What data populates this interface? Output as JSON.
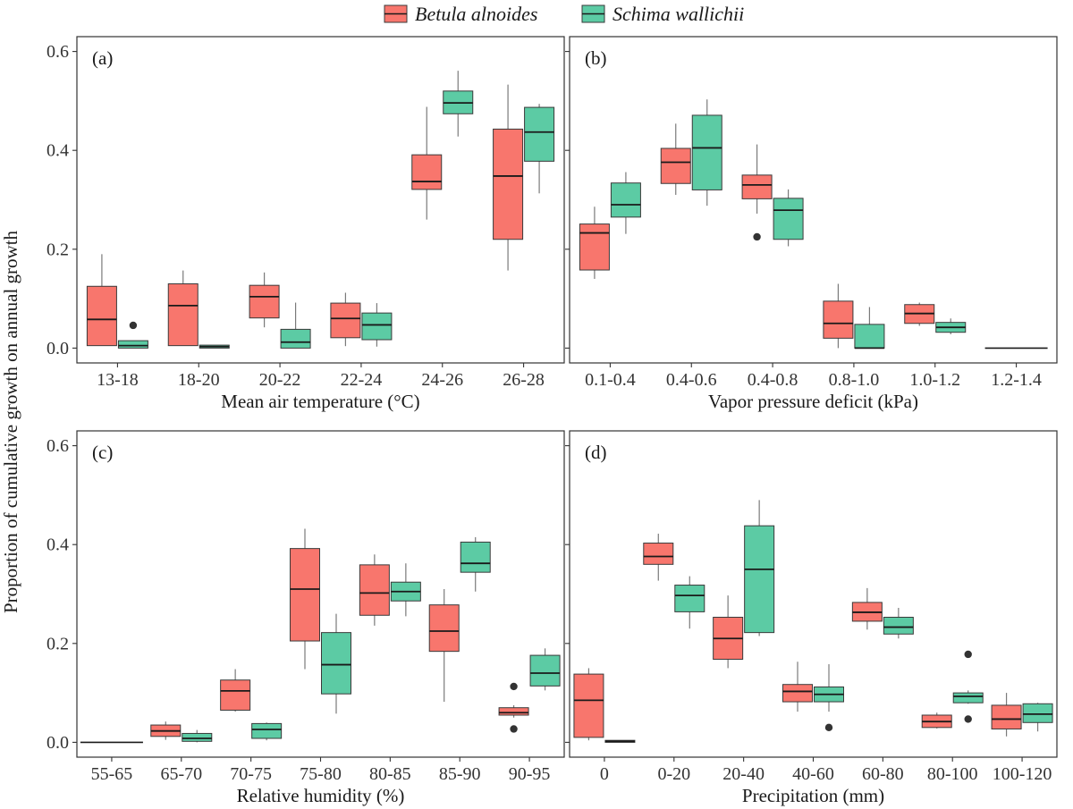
{
  "legend": {
    "series": [
      "Betula alnoides",
      "Schima wallichii"
    ]
  },
  "colors": {
    "betula": "#F8766D",
    "schima": "#5CCBA4",
    "edge": "#3a3a3a",
    "whisker": "#7a7a7a",
    "outlier": "#333333",
    "frame": "#333333"
  },
  "ylabel": "Proportion of cumulative growth on annual growth",
  "chart_data": [
    {
      "type": "box",
      "panel_label": "(a)",
      "xlabel": "Mean air temperature (°C)",
      "ylim": [
        -0.03,
        0.63
      ],
      "yticks": [
        "0.0",
        "0.2",
        "0.4",
        "0.6"
      ],
      "categories": [
        "13-18",
        "18-20",
        "20-22",
        "22-24",
        "24-26",
        "26-28"
      ],
      "series": [
        {
          "name": "Betula alnoides",
          "boxes": [
            {
              "min": 0.005,
              "q1": 0.005,
              "median": 0.058,
              "q3": 0.125,
              "max": 0.19,
              "outliers": []
            },
            {
              "min": 0.005,
              "q1": 0.005,
              "median": 0.086,
              "q3": 0.13,
              "max": 0.157,
              "outliers": []
            },
            {
              "min": 0.042,
              "q1": 0.061,
              "median": 0.104,
              "q3": 0.127,
              "max": 0.153,
              "outliers": []
            },
            {
              "min": 0.004,
              "q1": 0.021,
              "median": 0.06,
              "q3": 0.091,
              "max": 0.112,
              "outliers": []
            },
            null,
            {
              "min": 0.157,
              "q1": 0.22,
              "median": 0.348,
              "q3": 0.443,
              "max": 0.533,
              "outliers": []
            }
          ]
        },
        {
          "name": "Schima wallichii",
          "boxes": [
            {
              "min": 0.0,
              "q1": 0.0,
              "median": 0.005,
              "q3": 0.015,
              "max": 0.015,
              "outliers": [
                0.046
              ]
            },
            {
              "min": 0.0,
              "q1": 0.0,
              "median": 0.003,
              "q3": 0.006,
              "max": 0.006,
              "outliers": []
            },
            {
              "min": 0.0,
              "q1": 0.0,
              "median": 0.012,
              "q3": 0.038,
              "max": 0.092,
              "outliers": []
            },
            {
              "min": 0.003,
              "q1": 0.017,
              "median": 0.047,
              "q3": 0.071,
              "max": 0.091,
              "outliers": []
            },
            null,
            null
          ]
        }
      ],
      "extra_boxes": [
        {
          "series": "Betula alnoides",
          "category": "24-26",
          "min": 0.26,
          "q1": 0.321,
          "median": 0.337,
          "q3": 0.391,
          "max": 0.488,
          "outliers": []
        },
        {
          "series": "Schima wallichii",
          "category": "24-26",
          "min": 0.428,
          "q1": 0.474,
          "median": 0.496,
          "q3": 0.52,
          "max": 0.561,
          "outliers": []
        },
        {
          "series": "Schima wallichii",
          "category": "26-28",
          "min": 0.313,
          "q1": 0.378,
          "median": 0.437,
          "q3": 0.487,
          "max": 0.494,
          "outliers": []
        }
      ]
    },
    {
      "type": "box",
      "panel_label": "(b)",
      "xlabel": "Vapor pressure deficit (kPa)",
      "ylim": [
        -0.03,
        0.63
      ],
      "yticks": [
        "0.0",
        "0.2",
        "0.4",
        "0.6"
      ],
      "categories": [
        "0.1-0.4",
        "0.4-0.6",
        "0.4-0.8",
        "0.8-1.0",
        "1.0-1.2",
        "1.2-1.4"
      ],
      "series": [
        {
          "name": "Betula alnoides",
          "boxes": [
            {
              "min": 0.14,
              "q1": 0.158,
              "median": 0.233,
              "q3": 0.251,
              "max": 0.286,
              "outliers": []
            },
            {
              "min": 0.31,
              "q1": 0.333,
              "median": 0.376,
              "q3": 0.404,
              "max": 0.454,
              "outliers": []
            },
            {
              "min": 0.272,
              "q1": 0.302,
              "median": 0.33,
              "q3": 0.35,
              "max": 0.412,
              "outliers": [
                0.225
              ]
            },
            {
              "min": 0.0,
              "q1": 0.02,
              "median": 0.05,
              "q3": 0.095,
              "max": 0.13,
              "outliers": []
            },
            {
              "min": 0.045,
              "q1": 0.05,
              "median": 0.07,
              "q3": 0.088,
              "max": 0.092,
              "outliers": []
            },
            {
              "min": 0.0,
              "q1": 0.0,
              "median": 0.0,
              "q3": 0.0,
              "max": 0.0,
              "outliers": []
            }
          ]
        },
        {
          "name": "Schima wallichii",
          "boxes": [
            {
              "min": 0.231,
              "q1": 0.265,
              "median": 0.29,
              "q3": 0.334,
              "max": 0.356,
              "outliers": []
            },
            {
              "min": 0.288,
              "q1": 0.32,
              "median": 0.405,
              "q3": 0.471,
              "max": 0.503,
              "outliers": []
            },
            {
              "min": 0.206,
              "q1": 0.22,
              "median": 0.279,
              "q3": 0.303,
              "max": 0.321,
              "outliers": []
            },
            {
              "min": 0.0,
              "q1": 0.0,
              "median": 0.0,
              "q3": 0.048,
              "max": 0.083,
              "outliers": []
            },
            {
              "min": 0.028,
              "q1": 0.032,
              "median": 0.042,
              "q3": 0.052,
              "max": 0.06,
              "outliers": []
            },
            null
          ]
        }
      ]
    },
    {
      "type": "box",
      "panel_label": "(c)",
      "xlabel": "Relative humidity (%)",
      "ylim": [
        -0.03,
        0.63
      ],
      "yticks": [
        "0.0",
        "0.2",
        "0.4",
        "0.6"
      ],
      "categories": [
        "55-65",
        "65-70",
        "70-75",
        "75-80",
        "80-85",
        "85-90",
        "90-95"
      ],
      "series": [
        {
          "name": "Betula alnoides",
          "boxes": [
            {
              "min": 0.0,
              "q1": 0.0,
              "median": 0.0,
              "q3": 0.0,
              "max": 0.0,
              "outliers": []
            },
            {
              "min": 0.005,
              "q1": 0.012,
              "median": 0.023,
              "q3": 0.035,
              "max": 0.042,
              "outliers": []
            },
            {
              "min": 0.062,
              "q1": 0.065,
              "median": 0.104,
              "q3": 0.126,
              "max": 0.148,
              "outliers": []
            },
            {
              "min": 0.148,
              "q1": 0.205,
              "median": 0.31,
              "q3": 0.392,
              "max": 0.432,
              "outliers": []
            },
            {
              "min": 0.236,
              "q1": 0.257,
              "median": 0.302,
              "q3": 0.359,
              "max": 0.38,
              "outliers": []
            },
            {
              "min": 0.082,
              "q1": 0.184,
              "median": 0.225,
              "q3": 0.278,
              "max": 0.31,
              "outliers": []
            },
            {
              "min": 0.05,
              "q1": 0.055,
              "median": 0.06,
              "q3": 0.07,
              "max": 0.075,
              "outliers": [
                0.113,
                0.027
              ]
            }
          ]
        },
        {
          "name": "Schima wallichii",
          "boxes": [
            null,
            {
              "min": 0.0,
              "q1": 0.002,
              "median": 0.008,
              "q3": 0.018,
              "max": 0.025,
              "outliers": []
            },
            {
              "min": 0.004,
              "q1": 0.008,
              "median": 0.026,
              "q3": 0.038,
              "max": 0.04,
              "outliers": []
            },
            {
              "min": 0.058,
              "q1": 0.098,
              "median": 0.157,
              "q3": 0.222,
              "max": 0.26,
              "outliers": []
            },
            {
              "min": 0.255,
              "q1": 0.286,
              "median": 0.305,
              "q3": 0.324,
              "max": 0.362,
              "outliers": []
            },
            {
              "min": 0.305,
              "q1": 0.344,
              "median": 0.362,
              "q3": 0.405,
              "max": 0.415,
              "outliers": []
            },
            {
              "min": 0.105,
              "q1": 0.114,
              "median": 0.14,
              "q3": 0.176,
              "max": 0.19,
              "outliers": []
            }
          ]
        }
      ]
    },
    {
      "type": "box",
      "panel_label": "(d)",
      "xlabel": "Precipitation (mm)",
      "ylim": [
        -0.03,
        0.63
      ],
      "yticks": [
        "0.0",
        "0.2",
        "0.4",
        "0.6"
      ],
      "categories": [
        "0",
        "0-20",
        "20-40",
        "40-60",
        "60-80",
        "80-100",
        "100-120"
      ],
      "series": [
        {
          "name": "Betula alnoides",
          "boxes": [
            {
              "min": 0.004,
              "q1": 0.01,
              "median": 0.085,
              "q3": 0.138,
              "max": 0.15,
              "outliers": []
            },
            {
              "min": 0.327,
              "q1": 0.36,
              "median": 0.376,
              "q3": 0.403,
              "max": 0.422,
              "outliers": []
            },
            {
              "min": 0.15,
              "q1": 0.168,
              "median": 0.21,
              "q3": 0.253,
              "max": 0.297,
              "outliers": []
            },
            {
              "min": 0.062,
              "q1": 0.082,
              "median": 0.103,
              "q3": 0.117,
              "max": 0.163,
              "outliers": []
            },
            {
              "min": 0.228,
              "q1": 0.245,
              "median": 0.263,
              "q3": 0.283,
              "max": 0.312,
              "outliers": []
            },
            {
              "min": 0.028,
              "q1": 0.03,
              "median": 0.042,
              "q3": 0.055,
              "max": 0.06,
              "outliers": []
            },
            {
              "min": 0.012,
              "q1": 0.027,
              "median": 0.047,
              "q3": 0.075,
              "max": 0.1,
              "outliers": []
            }
          ]
        },
        {
          "name": "Schima wallichii",
          "boxes": [
            {
              "min": 0.0,
              "q1": 0.0,
              "median": 0.002,
              "q3": 0.004,
              "max": 0.004,
              "outliers": []
            },
            {
              "min": 0.23,
              "q1": 0.264,
              "median": 0.297,
              "q3": 0.318,
              "max": 0.336,
              "outliers": []
            },
            {
              "min": 0.215,
              "q1": 0.222,
              "median": 0.35,
              "q3": 0.438,
              "max": 0.49,
              "outliers": []
            },
            {
              "min": 0.062,
              "q1": 0.082,
              "median": 0.097,
              "q3": 0.112,
              "max": 0.158,
              "outliers": [
                0.03
              ]
            },
            {
              "min": 0.21,
              "q1": 0.219,
              "median": 0.233,
              "q3": 0.253,
              "max": 0.272,
              "outliers": []
            },
            {
              "min": 0.078,
              "q1": 0.08,
              "median": 0.093,
              "q3": 0.1,
              "max": 0.105,
              "outliers": [
                0.178,
                0.047
              ]
            },
            {
              "min": 0.022,
              "q1": 0.04,
              "median": 0.057,
              "q3": 0.078,
              "max": 0.08,
              "outliers": []
            }
          ]
        }
      ]
    }
  ]
}
